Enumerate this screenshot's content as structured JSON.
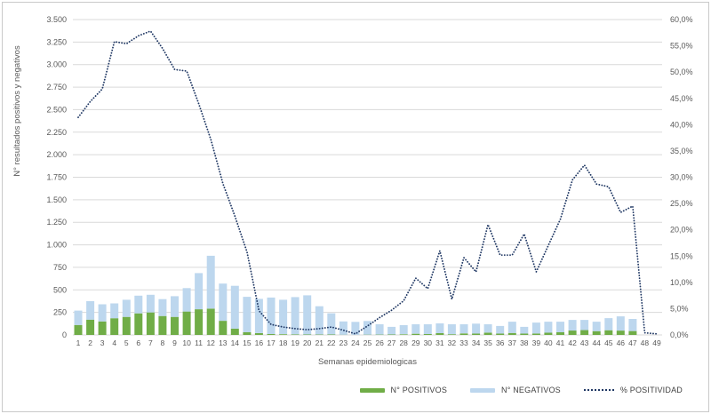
{
  "axes": {
    "left_ticks": [
      "0",
      "250",
      "500",
      "750",
      "1.000",
      "1.250",
      "1.500",
      "1.750",
      "2.000",
      "2.250",
      "2.500",
      "2.750",
      "3.000",
      "3.250",
      "3.500"
    ],
    "right_ticks": [
      "0,0%",
      "5,0%",
      "10,0%",
      "15,0%",
      "20,0%",
      "25,0%",
      "30,0%",
      "35,0%",
      "40,0%",
      "45,0%",
      "50,0%",
      "55,0%",
      "60,0%"
    ]
  },
  "colors": {
    "positivos": "#70AD47",
    "negativos": "#BDD7EE",
    "positividad": "#203864",
    "gridline": "#D9D9D9",
    "tick_text": "#595959"
  },
  "chart_data": {
    "type": "bar",
    "stacked": true,
    "line_overlay": true,
    "title": "",
    "xlabel": "Semanas epidemiologicas",
    "ylabel_left": "N° resultados positivos y negativos",
    "ylim_left": [
      0,
      3500
    ],
    "left_tick_step": 250,
    "ylim_right": [
      0,
      60
    ],
    "right_tick_step": 5,
    "grid": "horizontal",
    "legend_position": "bottom-right",
    "categories": [
      "1",
      "2",
      "3",
      "4",
      "5",
      "6",
      "7",
      "8",
      "9",
      "10",
      "11",
      "12",
      "13",
      "14",
      "15",
      "16",
      "17",
      "18",
      "19",
      "20",
      "21",
      "22",
      "23",
      "24",
      "25",
      "26",
      "27",
      "28",
      "29",
      "30",
      "31",
      "32",
      "33",
      "34",
      "35",
      "36",
      "37",
      "38",
      "39",
      "40",
      "41",
      "42",
      "43",
      "44",
      "45",
      "46",
      "47",
      "48",
      "49"
    ],
    "series": [
      {
        "name": "N° POSITIVOS",
        "type": "bar",
        "axis": "left",
        "color": "#70AD47",
        "values": [
          110,
          170,
          150,
          185,
          200,
          240,
          250,
          210,
          200,
          260,
          285,
          292,
          157,
          70,
          30,
          20,
          10,
          8,
          6,
          5,
          4,
          5,
          2,
          1,
          3,
          4,
          5,
          7,
          13,
          10,
          20,
          8,
          17,
          15,
          25,
          15,
          22,
          15,
          16,
          25,
          30,
          49,
          54,
          42,
          52,
          48,
          43,
          0,
          0
        ]
      },
      {
        "name": "N° NEGATIVOS",
        "type": "bar",
        "axis": "left",
        "color": "#BDD7EE",
        "values": [
          160,
          205,
          190,
          165,
          190,
          196,
          196,
          187,
          230,
          260,
          401,
          586,
          413,
          475,
          393,
          380,
          405,
          382,
          414,
          435,
          314,
          235,
          148,
          144,
          152,
          114,
          85,
          101,
          105,
          108,
          108,
          110,
          101,
          110,
          93,
          85,
          125,
          75,
          121,
          122,
          117,
          118,
          113,
          105,
          134,
          158,
          134,
          0,
          0
        ]
      },
      {
        "name": "% POSITIVIDAD",
        "type": "line",
        "style": "dotted",
        "axis": "right",
        "color": "#203864",
        "values": [
          41.4,
          44.4,
          46.8,
          55.8,
          55.4,
          56.9,
          57.8,
          54.5,
          50.5,
          50.2,
          44.0,
          37.2,
          28.8,
          22.6,
          15.8,
          4.6,
          2.0,
          1.5,
          1.2,
          1.0,
          1.2,
          1.5,
          0.9,
          0.2,
          1.7,
          3.3,
          4.7,
          6.5,
          10.8,
          8.8,
          16.0,
          6.8,
          14.7,
          12.0,
          21.0,
          15.2,
          15.2,
          19.2,
          12.0,
          17.0,
          22.0,
          29.5,
          32.3,
          28.7,
          28.2,
          23.3,
          24.5,
          0.4,
          0.2
        ]
      }
    ]
  }
}
